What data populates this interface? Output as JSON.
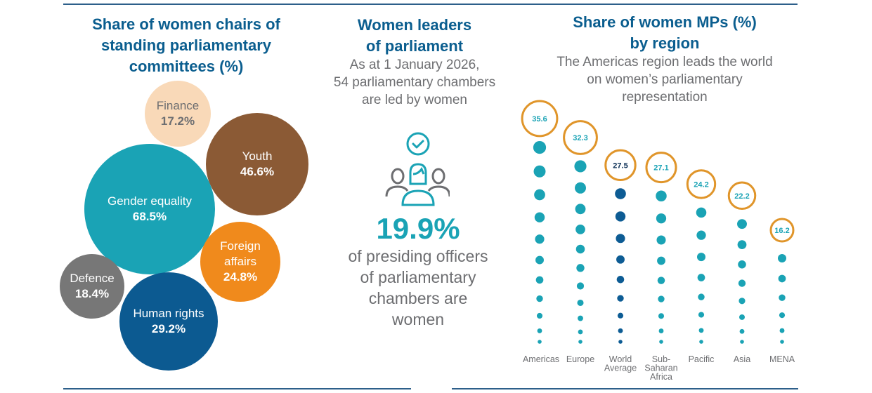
{
  "committees": {
    "title_lines": [
      "Share of women chairs of",
      "standing parliamentary",
      "committees (%)"
    ],
    "bubbles": [
      {
        "label": "Finance",
        "value": "17.2%",
        "color": "#f9d9b8",
        "text_color": "#6d6e71"
      },
      {
        "label": "Youth",
        "value": "46.6%",
        "color": "#8b5a35",
        "text_color": "#ffffff"
      },
      {
        "label": "Gender equality",
        "value": "68.5%",
        "color": "#1aa3b5",
        "text_color": "#ffffff"
      },
      {
        "label": "Foreign affairs",
        "value": "24.8%",
        "color": "#f08a1c",
        "text_color": "#ffffff"
      },
      {
        "label": "Defence",
        "value": "18.4%",
        "color": "#777777",
        "text_color": "#ffffff"
      },
      {
        "label": "Human rights",
        "value": "29.2%",
        "color": "#0c5a91",
        "text_color": "#ffffff"
      }
    ]
  },
  "leaders": {
    "title_lines": [
      "Women leaders",
      "of parliament"
    ],
    "subtitle_lines": [
      "As at 1 January 2026,",
      "54 parliamentary chambers",
      "are led by women"
    ],
    "big_value": "19.9%",
    "desc_lines": [
      "of presiding officers",
      "of parliamentary",
      "chambers are",
      "women"
    ]
  },
  "chart_data": {
    "type": "bar",
    "title": "Share of women MPs (%) by region",
    "subtitle": "The Americas region leads the world on women's parliamentary representation",
    "title_lines": [
      "Share of women MPs (%)",
      "by region"
    ],
    "subtitle_lines": [
      "The Americas region leads the world",
      "on women’s parliamentary",
      "representation"
    ],
    "categories": [
      "Americas",
      "Europe",
      "World Average",
      "Sub-Saharan Africa",
      "Pacific",
      "Asia",
      "MENA"
    ],
    "category_lines": [
      [
        "Americas"
      ],
      [
        "Europe"
      ],
      [
        "World",
        "Average"
      ],
      [
        "Sub-",
        "Saharan",
        "Africa"
      ],
      [
        "Pacific"
      ],
      [
        "Asia"
      ],
      [
        "MENA"
      ]
    ],
    "values": [
      35.6,
      32.3,
      27.5,
      27.1,
      24.2,
      22.2,
      16.2
    ],
    "value_labels": [
      "35.6",
      "32.3",
      "27.5",
      "27.1",
      "24.2",
      "22.2",
      "16.2"
    ],
    "highlight": "World Average",
    "colors": {
      "dot": "#1aa3b5",
      "highlight_dot": "#0d5c94",
      "ring": "#e0952a",
      "label": "#1aa3b5",
      "highlight_label": "#0b2f55"
    },
    "xlabel": "",
    "ylabel": "Share of women MPs (%)"
  }
}
